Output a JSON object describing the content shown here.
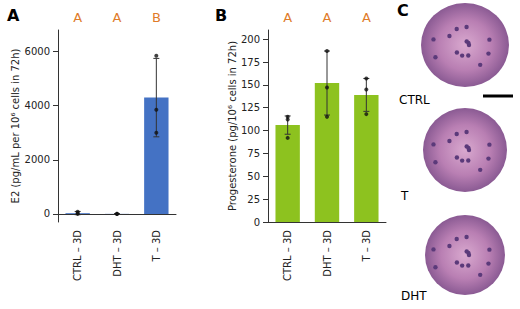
{
  "chart_data": [
    {
      "type": "bar",
      "panel": "A",
      "y_label": "E2 (pg/mL per 10⁶ cells in 72h)",
      "categories": [
        "CTRL – 3D",
        "DHT – 3D",
        "T – 3D"
      ],
      "values": [
        30,
        5,
        4300
      ],
      "error": [
        60,
        5,
        1450
      ],
      "points": [
        [
          80,
          20,
          0
        ],
        [
          0,
          0,
          0
        ],
        [
          5850,
          3850,
          3000
        ]
      ],
      "group_letters": [
        "A",
        "A",
        "B"
      ],
      "color": "#4472c4",
      "ylim": [
        -300,
        6800
      ],
      "yticks": [
        0,
        2000,
        4000,
        6000
      ],
      "grid": false
    },
    {
      "type": "bar",
      "panel": "B",
      "y_label": "Progesterone (pg/10⁶ cells in 72h)",
      "categories": [
        "CTRL – 3D",
        "DHT – 3D",
        "T – 3D"
      ],
      "values": [
        106,
        152,
        139
      ],
      "error": [
        10,
        35,
        18
      ],
      "points": [
        [
          115,
          112,
          92
        ],
        [
          187,
          147,
          115
        ],
        [
          157,
          145,
          118
        ]
      ],
      "group_letters": [
        "A",
        "A",
        "A"
      ],
      "color": "#8dc21f",
      "ylim": [
        0,
        210
      ],
      "yticks": [
        0,
        25,
        50,
        75,
        100,
        125,
        150,
        175,
        200
      ],
      "grid": false
    }
  ],
  "images": {
    "panel": "C",
    "labels": [
      "CTRL",
      "T",
      "DHT"
    ]
  }
}
